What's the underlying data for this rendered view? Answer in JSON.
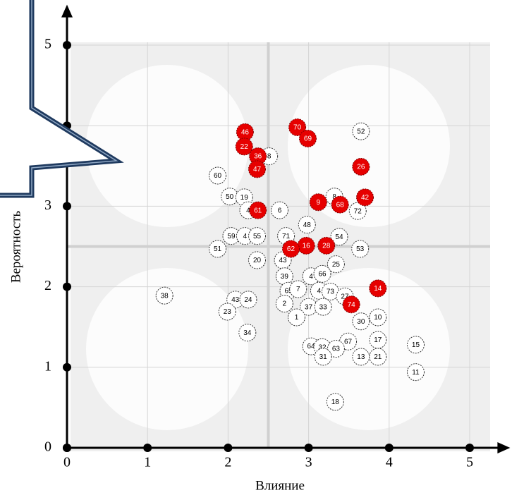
{
  "chart_data": {
    "type": "scatter",
    "x_label": "Влияние",
    "y_label": "Вероятность",
    "xlim": [
      0,
      5.45
    ],
    "ylim": [
      0,
      5.45
    ],
    "xticks": [
      0,
      1,
      2,
      3,
      4,
      5
    ],
    "yticks": [
      0,
      1,
      2,
      3,
      4,
      5
    ],
    "grid": true,
    "reference_lines": {
      "x": 2.5,
      "y": 2.5
    },
    "series": [
      {
        "color": "#e60000",
        "labels": [
          "46",
          "70",
          "69",
          "22",
          "36",
          "47",
          "26",
          "9",
          "68",
          "42",
          "61",
          "16",
          "28",
          "62",
          "14",
          "74"
        ],
        "x": [
          2.21,
          2.86,
          2.99,
          2.2,
          2.37,
          2.36,
          3.65,
          3.12,
          3.39,
          3.7,
          2.37,
          2.97,
          3.22,
          2.78,
          3.86,
          3.53
        ],
        "values": [
          3.92,
          3.98,
          3.84,
          3.74,
          3.62,
          3.46,
          3.49,
          3.05,
          3.02,
          3.11,
          2.95,
          2.51,
          2.51,
          2.47,
          1.98,
          1.78
        ]
      },
      {
        "color": "#ffffff",
        "labels": [
          "52",
          "8",
          "60",
          "50",
          "19",
          "4",
          "6",
          "8",
          "72",
          "48",
          "59",
          "4",
          "55",
          "71",
          "54",
          "51",
          "53",
          "20",
          "43",
          "25",
          "39",
          "4",
          "66",
          "65",
          "7",
          "4",
          "73",
          "27",
          "38",
          "43",
          "24",
          "2",
          "37",
          "33",
          "23",
          "1",
          "10",
          "30",
          "34",
          "17",
          "15",
          "67",
          "64",
          "32",
          "63",
          "31",
          "13",
          "21",
          "11",
          "18"
        ],
        "x": [
          3.65,
          2.51,
          1.87,
          2.02,
          2.2,
          2.25,
          2.64,
          3.32,
          3.61,
          2.98,
          2.04,
          2.21,
          2.36,
          2.72,
          3.38,
          1.87,
          3.64,
          2.36,
          2.68,
          3.34,
          2.7,
          3.03,
          3.17,
          2.75,
          2.87,
          3.13,
          3.27,
          3.45,
          1.21,
          2.09,
          2.25,
          2.7,
          3.0,
          3.18,
          1.99,
          2.85,
          3.86,
          3.65,
          2.24,
          3.86,
          4.33,
          3.49,
          3.03,
          3.17,
          3.34,
          3.18,
          3.65,
          3.86,
          4.33,
          3.33
        ],
        "values": [
          3.93,
          3.62,
          3.38,
          3.12,
          3.11,
          2.95,
          2.95,
          3.12,
          2.94,
          2.77,
          2.63,
          2.63,
          2.63,
          2.63,
          2.62,
          2.47,
          2.47,
          2.33,
          2.33,
          2.28,
          2.13,
          2.13,
          2.16,
          1.95,
          1.97,
          1.95,
          1.94,
          1.88,
          1.89,
          1.84,
          1.84,
          1.79,
          1.75,
          1.75,
          1.69,
          1.62,
          1.62,
          1.57,
          1.43,
          1.34,
          1.28,
          1.32,
          1.26,
          1.25,
          1.23,
          1.13,
          1.13,
          1.13,
          0.94,
          0.57
        ]
      }
    ]
  }
}
